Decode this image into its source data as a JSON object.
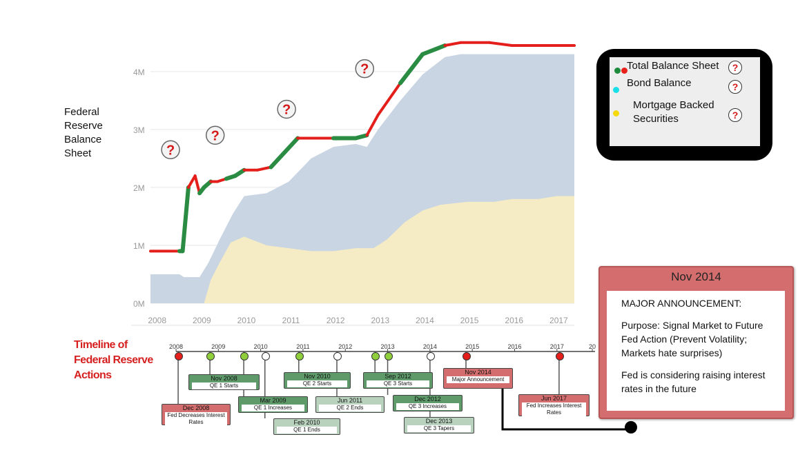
{
  "side_title": "Federal\nReserve\nBalance\nSheet",
  "timeline_title": "Timeline of\nFederal Reserve\nActions",
  "legend": {
    "items": [
      {
        "label": "Total Balance Sheet",
        "dot_colors": [
          "#1e8a3c",
          "#e8201a"
        ]
      },
      {
        "label": "Bond Balance",
        "dot_colors": [
          "#19e0e8"
        ]
      },
      {
        "label": "Mortgage Backed\nSecurities",
        "dot_colors": [
          "#f5d90a"
        ]
      }
    ],
    "question_glyph": "?"
  },
  "popup": {
    "header": "Nov 2014",
    "heading": "MAJOR ANNOUNCEMENT:",
    "purpose": "Purpose: Signal Market to Future Fed Action (Prevent Volatility; Markets hate surprises)",
    "note": "Fed is considering raising interest rates in the future"
  },
  "colors": {
    "bond_area": "#c9d5e2",
    "mbs_area": "#f5ecc6",
    "line_green": "#2a8c42",
    "line_red": "#e41e1a"
  },
  "chart_data": {
    "type": "area",
    "y_ticks": [
      "0M",
      "1M",
      "2M",
      "3M",
      "4M"
    ],
    "x_ticks": [
      "2008",
      "2009",
      "2010",
      "2011",
      "2012",
      "2013",
      "2014",
      "2015",
      "2016",
      "2017"
    ],
    "ylim": [
      0,
      4.7
    ],
    "xlim": [
      2007.9,
      2017.4
    ],
    "grid": true,
    "series": [
      {
        "name": "Total Balance Sheet",
        "x": [
          2007.9,
          2008.55,
          2008.62,
          2008.75,
          2008.9,
          2009.0,
          2009.1,
          2009.25,
          2009.4,
          2009.6,
          2009.8,
          2010.0,
          2010.3,
          2010.6,
          2010.9,
          2011.2,
          2011.5,
          2012.0,
          2012.5,
          2012.75,
          2013.0,
          2013.5,
          2014.0,
          2014.5,
          2014.85,
          2015.5,
          2016.0,
          2016.5,
          2017.0,
          2017.4
        ],
        "values": [
          0.9,
          0.9,
          0.9,
          2.0,
          2.2,
          1.9,
          2.0,
          2.1,
          2.1,
          2.15,
          2.2,
          2.3,
          2.3,
          2.35,
          2.6,
          2.85,
          2.85,
          2.85,
          2.85,
          2.9,
          3.25,
          3.8,
          4.3,
          4.45,
          4.5,
          4.5,
          4.45,
          4.45,
          4.45,
          4.45
        ]
      },
      {
        "name": "Bond Balance",
        "x": [
          2007.9,
          2008.55,
          2008.65,
          2008.8,
          2009.0,
          2009.2,
          2009.45,
          2009.75,
          2010.0,
          2010.5,
          2011.0,
          2011.5,
          2012.0,
          2012.5,
          2012.75,
          2013.0,
          2013.5,
          2014.0,
          2014.5,
          2014.85,
          2015.5,
          2016.0,
          2016.5,
          2017.0,
          2017.4
        ],
        "values": [
          0.5,
          0.5,
          0.45,
          0.45,
          0.45,
          0.7,
          1.1,
          1.55,
          1.85,
          1.9,
          2.1,
          2.5,
          2.7,
          2.75,
          2.7,
          3.0,
          3.5,
          3.95,
          4.25,
          4.3,
          4.3,
          4.3,
          4.3,
          4.3,
          4.3
        ]
      },
      {
        "name": "Mortgage Backed\nSecurities",
        "x": [
          2009.1,
          2009.25,
          2009.45,
          2009.7,
          2010.0,
          2010.5,
          2011.0,
          2011.5,
          2012.0,
          2012.5,
          2012.9,
          2013.2,
          2013.6,
          2014.0,
          2014.4,
          2015.0,
          2015.6,
          2016.0,
          2016.6,
          2017.0,
          2017.4
        ],
        "values": [
          0.0,
          0.4,
          0.7,
          1.05,
          1.15,
          1.0,
          0.95,
          0.9,
          0.9,
          0.95,
          0.95,
          1.1,
          1.4,
          1.6,
          1.7,
          1.75,
          1.75,
          1.8,
          1.8,
          1.85,
          1.85
        ]
      }
    ]
  },
  "timeline": {
    "axis_years": [
      "2008",
      "2009",
      "2010",
      "2011",
      "2012",
      "2013",
      "2014",
      "2015",
      "2016",
      "2017",
      "20"
    ],
    "events": [
      {
        "date": "Dec 2008",
        "label": "Fed Decreases Interest Rates",
        "color": "red"
      },
      {
        "date": "Nov 2008",
        "label": "QE 1 Starts",
        "color": "green"
      },
      {
        "date": "Mar 2009",
        "label": "QE 1 Increases",
        "color": "green"
      },
      {
        "date": "Feb 2010",
        "label": "QE 1 Ends",
        "color": "lightgreen"
      },
      {
        "date": "Nov 2010",
        "label": "QE 2 Starts",
        "color": "green"
      },
      {
        "date": "Jun 2011",
        "label": "QE 2 Ends",
        "color": "lightgreen"
      },
      {
        "date": "Sep 2012",
        "label": "QE 3 Starts",
        "color": "green"
      },
      {
        "date": "Dec 2012",
        "label": "QE 3 Increases",
        "color": "green"
      },
      {
        "date": "Dec 2013",
        "label": "QE 3 Tapers",
        "color": "lightgreen"
      },
      {
        "date": "Nov 2014",
        "label": "Major Announcement",
        "color": "red"
      },
      {
        "date": "Jun 2017",
        "label": "Fed Increases Interest Rates",
        "color": "red"
      }
    ]
  }
}
